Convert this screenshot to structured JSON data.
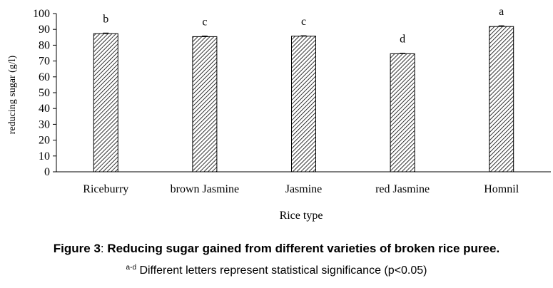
{
  "chart_data": {
    "type": "bar",
    "categories": [
      "Riceburry",
      "brown Jasmine",
      "Jasmine",
      "red Jasmine",
      "Homnil"
    ],
    "values": [
      87.3,
      85.4,
      85.7,
      74.6,
      91.8
    ],
    "errors": [
      0.4,
      0.4,
      0.3,
      0.3,
      0.5
    ],
    "significance_letters": [
      "b",
      "c",
      "c",
      "d",
      "a"
    ],
    "xlabel": "Rice type",
    "ylabel": "reducing sugar (g/l)",
    "ylim": [
      0,
      100
    ],
    "yticks": [
      "0",
      "10",
      "20",
      "30",
      "40",
      "50",
      "60",
      "70",
      "80",
      "90",
      "100"
    ],
    "grid": false,
    "bar_fill": "diagonal-hatch",
    "bar_color": "#000000"
  },
  "caption": {
    "label": "Figure 3",
    "separator": ":",
    "text": " Reducing sugar gained from different varieties of broken rice puree."
  },
  "note": {
    "superscript": "a-d",
    "text": " Different letters represent statistical significance (p<0.05)"
  }
}
